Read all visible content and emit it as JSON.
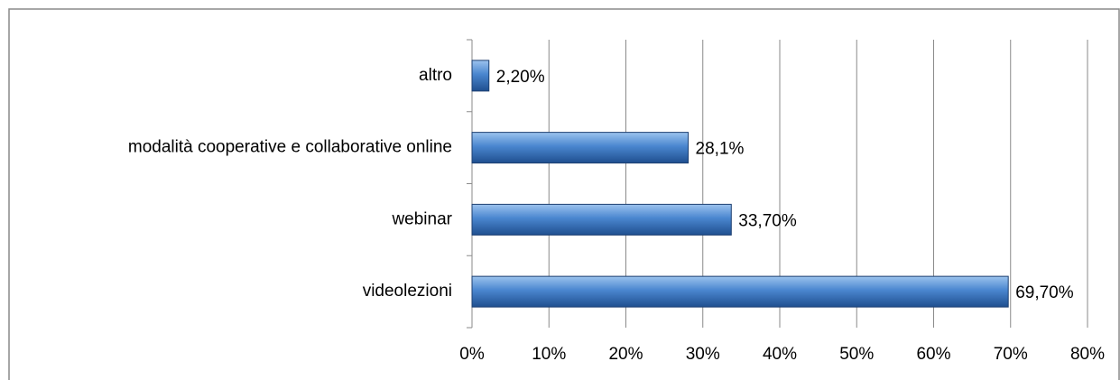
{
  "chart_data": {
    "type": "bar",
    "orientation": "horizontal",
    "categories": [
      "videolezioni",
      "webinar",
      "modalità cooperative e collaborative online",
      "altro"
    ],
    "values": [
      69.7,
      33.7,
      28.1,
      2.2
    ],
    "value_labels": [
      "69,70%",
      "33,70%",
      "28,1%",
      "2,20%"
    ],
    "color": "#3a78c3",
    "xlim": [
      0,
      80
    ],
    "xticks": [
      {
        "value": 0,
        "label": "0%"
      },
      {
        "value": 10,
        "label": "10%"
      },
      {
        "value": 20,
        "label": "20%"
      },
      {
        "value": 30,
        "label": "30%"
      },
      {
        "value": 40,
        "label": "40%"
      },
      {
        "value": 50,
        "label": "50%"
      },
      {
        "value": 60,
        "label": "60%"
      },
      {
        "value": 70,
        "label": "70%"
      },
      {
        "value": 80,
        "label": "80%"
      }
    ],
    "grid": true
  }
}
